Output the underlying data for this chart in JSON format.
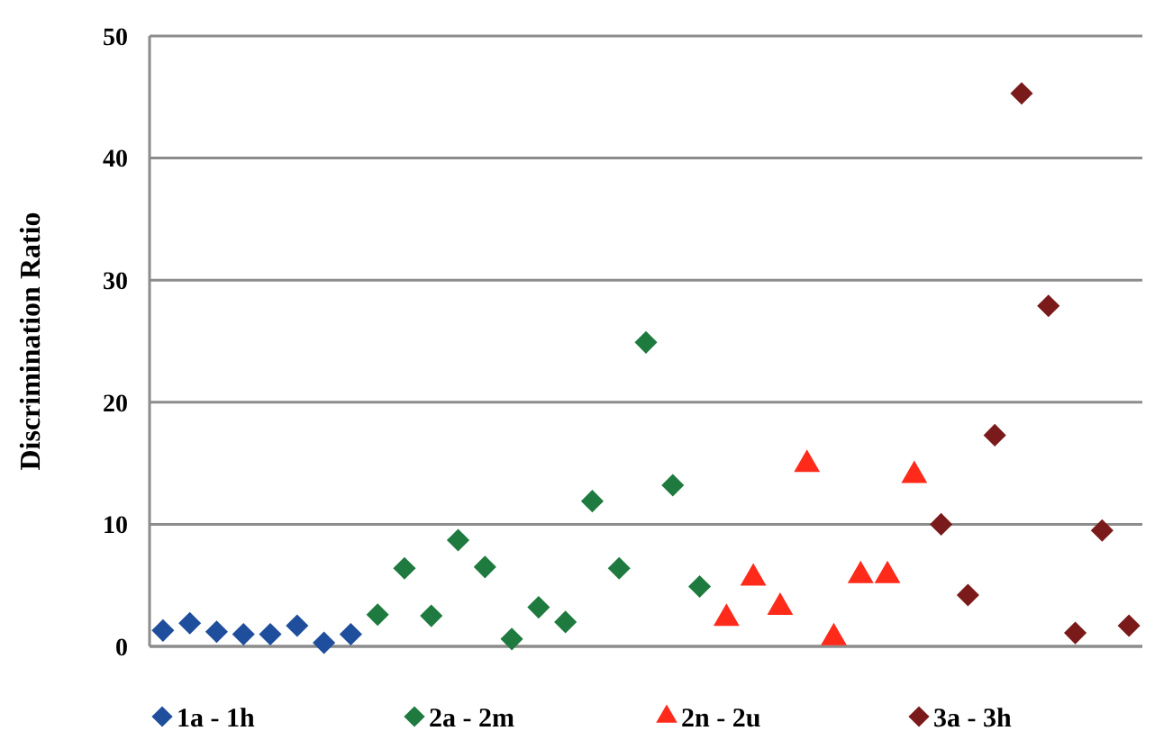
{
  "chart_data": {
    "type": "scatter",
    "ylabel": "Discrimination Ratio",
    "categories": [
      null,
      null,
      null,
      null,
      null,
      null,
      null,
      null,
      null,
      null,
      null,
      null,
      null,
      null,
      null,
      null,
      null,
      null,
      null,
      null,
      null,
      null,
      null,
      null,
      null,
      null,
      null,
      null,
      null,
      null,
      null,
      null,
      null,
      null,
      null,
      null,
      null
    ],
    "series": [
      {
        "name": "1a - 1h",
        "color": "#1f4e9c",
        "marker": "diamond",
        "values": [
          1.3,
          1.9,
          1.2,
          1.0,
          1.0,
          1.7,
          0.3,
          1.0,
          null,
          null,
          null,
          null,
          null,
          null,
          null,
          null,
          null,
          null,
          null,
          null,
          null,
          null,
          null,
          null,
          null,
          null,
          null,
          null,
          null,
          null,
          null,
          null,
          null,
          null,
          null,
          null,
          null
        ]
      },
      {
        "name": "2a - 2m",
        "color": "#1e7a3e",
        "marker": "diamond",
        "values": [
          null,
          null,
          null,
          null,
          null,
          null,
          null,
          null,
          2.6,
          6.4,
          2.5,
          8.7,
          6.5,
          0.6,
          3.2,
          2.0,
          11.9,
          6.4,
          24.9,
          13.2,
          4.9,
          null,
          null,
          null,
          null,
          null,
          null,
          null,
          null,
          null,
          null,
          null,
          null,
          null,
          null,
          null,
          null
        ]
      },
      {
        "name": "2n - 2u",
        "color": "#ff2a1a",
        "marker": "triangle",
        "values": [
          null,
          null,
          null,
          null,
          null,
          null,
          null,
          null,
          null,
          null,
          null,
          null,
          null,
          null,
          null,
          null,
          null,
          null,
          null,
          null,
          null,
          2.3,
          5.6,
          3.2,
          14.9,
          0.7,
          5.8,
          5.8,
          14.0,
          null,
          null,
          null,
          null,
          null,
          null,
          null,
          null
        ]
      },
      {
        "name": "3a - 3h",
        "color": "#7a1a1a",
        "marker": "diamond",
        "values": [
          null,
          null,
          null,
          null,
          null,
          null,
          null,
          null,
          null,
          null,
          null,
          null,
          null,
          null,
          null,
          null,
          null,
          null,
          null,
          null,
          null,
          null,
          null,
          null,
          null,
          null,
          null,
          null,
          null,
          10.0,
          4.2,
          17.3,
          45.3,
          27.9,
          1.1,
          9.5,
          1.7
        ]
      }
    ],
    "ylim": [
      0,
      50
    ],
    "yticks": [
      0,
      10,
      20,
      30,
      40,
      50
    ],
    "grid": "y",
    "legend": "bottom",
    "tick_labels": "y"
  }
}
